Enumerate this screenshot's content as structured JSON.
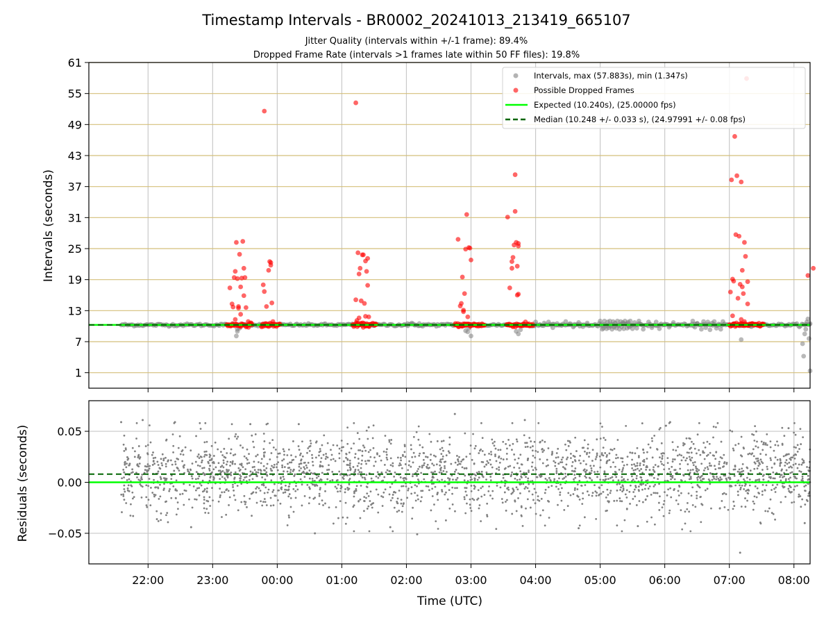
{
  "figure": {
    "title": "Timestamp Intervals - BR0002_20241013_213419_665107",
    "subtitle_1": "Jitter Quality (intervals within +/-1 frame): 89.4%",
    "subtitle_2": "Dropped Frame Rate (intervals >1 frames late within 50 FF files): 19.8%",
    "xlabel": "Time (UTC)"
  },
  "chart_data": [
    {
      "type": "scatter",
      "panel": "top",
      "ylabel": "Intervals (seconds)",
      "xlim": [
        "21:05",
        "08:15"
      ],
      "ylim": [
        -2,
        61
      ],
      "yticks": [
        1,
        7,
        13,
        19,
        25,
        31,
        37,
        43,
        49,
        55,
        61
      ],
      "xticks": [
        "22:00",
        "23:00",
        "00:00",
        "01:00",
        "02:00",
        "03:00",
        "04:00",
        "05:00",
        "06:00",
        "07:00",
        "08:00"
      ],
      "grid": "on",
      "legend_position": "top-right",
      "legend": [
        {
          "label": "Intervals, max (57.883s), min (1.347s)",
          "marker": "circle",
          "color": "#808080"
        },
        {
          "label": "Possible Dropped Frames",
          "marker": "circle",
          "color": "#ff0000"
        },
        {
          "label": "Expected (10.240s), (25.00000 fps)",
          "line": "solid",
          "color": "#00ff00"
        },
        {
          "label": "Median (10.248 +/- 0.033 s), (24.97991 +/- 0.08 fps)",
          "line": "dashed",
          "color": "#006400"
        }
      ],
      "expected_value": 10.24,
      "median_value": 10.248,
      "baseline_band": {
        "time_start": "21:35",
        "time_end": "08:15",
        "value": 10.24
      },
      "series": [
        {
          "name": "Possible Dropped Frames",
          "color": "#ff0000",
          "points": [
            [
              "23:16",
              17.4
            ],
            [
              "23:18",
              14.3
            ],
            [
              "23:19",
              13.7
            ],
            [
              "23:20",
              19.4
            ],
            [
              "23:21",
              20.6
            ],
            [
              "23:22",
              26.2
            ],
            [
              "23:23",
              19.2
            ],
            [
              "23:24",
              13.5
            ],
            [
              "23:25",
              23.9
            ],
            [
              "23:26",
              17.6
            ],
            [
              "23:27",
              19.3
            ],
            [
              "23:28",
              26.4
            ],
            [
              "23:29",
              21.2
            ],
            [
              "23:30",
              19.4
            ],
            [
              "23:31",
              13.6
            ],
            [
              "23:29",
              15.9
            ],
            [
              "23:24",
              13.8
            ],
            [
              "23:26",
              12.3
            ],
            [
              "23:21",
              11.3
            ],
            [
              "23:33",
              10.9
            ],
            [
              "23:48",
              51.6
            ],
            [
              "23:47",
              18.0
            ],
            [
              "23:48",
              16.7
            ],
            [
              "23:50",
              13.8
            ],
            [
              "23:52",
              20.8
            ],
            [
              "23:53",
              22.5
            ],
            [
              "23:54",
              21.8
            ],
            [
              "23:55",
              14.5
            ],
            [
              "23:54",
              22.3
            ],
            [
              "23:56",
              10.9
            ],
            [
              "01:13",
              53.2
            ],
            [
              "01:13",
              15.1
            ],
            [
              "01:15",
              24.2
            ],
            [
              "01:16",
              20.1
            ],
            [
              "01:17",
              21.2
            ],
            [
              "01:18",
              14.9
            ],
            [
              "01:19",
              23.8
            ],
            [
              "01:20",
              23.8
            ],
            [
              "01:21",
              14.4
            ],
            [
              "01:22",
              22.6
            ],
            [
              "01:23",
              20.6
            ],
            [
              "01:24",
              17.9
            ],
            [
              "01:24",
              23.1
            ],
            [
              "01:22",
              11.9
            ],
            [
              "01:14",
              11.1
            ],
            [
              "01:25",
              11.8
            ],
            [
              "01:16",
              11.6
            ],
            [
              "02:48",
              26.8
            ],
            [
              "02:50",
              13.9
            ],
            [
              "02:51",
              14.4
            ],
            [
              "02:52",
              19.5
            ],
            [
              "02:53",
              13.1
            ],
            [
              "02:54",
              16.3
            ],
            [
              "02:55",
              24.9
            ],
            [
              "02:56",
              31.6
            ],
            [
              "02:57",
              11.8
            ],
            [
              "02:58",
              25.2
            ],
            [
              "02:59",
              25.1
            ],
            [
              "03:00",
              22.8
            ],
            [
              "02:53",
              12.8
            ],
            [
              "03:34",
              31.1
            ],
            [
              "03:36",
              17.4
            ],
            [
              "03:38",
              21.2
            ],
            [
              "03:39",
              23.3
            ],
            [
              "03:40",
              25.7
            ],
            [
              "03:41",
              39.3
            ],
            [
              "03:41",
              32.2
            ],
            [
              "03:42",
              26.2
            ],
            [
              "03:43",
              21.6
            ],
            [
              "03:44",
              26.0
            ],
            [
              "03:44",
              25.5
            ],
            [
              "03:43",
              16.0
            ],
            [
              "03:44",
              16.2
            ],
            [
              "03:38",
              22.5
            ],
            [
              "07:01",
              16.6
            ],
            [
              "07:02",
              38.3
            ],
            [
              "07:03",
              19.1
            ],
            [
              "07:04",
              18.7
            ],
            [
              "07:05",
              46.7
            ],
            [
              "07:06",
              27.7
            ],
            [
              "07:07",
              39.1
            ],
            [
              "07:08",
              15.4
            ],
            [
              "07:09",
              27.4
            ],
            [
              "07:10",
              18.1
            ],
            [
              "07:11",
              37.9
            ],
            [
              "07:12",
              17.6
            ],
            [
              "07:12",
              20.8
            ],
            [
              "07:13",
              16.3
            ],
            [
              "07:14",
              26.2
            ],
            [
              "07:15",
              23.5
            ],
            [
              "07:16",
              57.9
            ],
            [
              "07:17",
              18.6
            ],
            [
              "07:17",
              14.3
            ],
            [
              "07:03",
              12.0
            ],
            [
              "07:11",
              11.3
            ],
            [
              "07:14",
              10.9
            ],
            [
              "08:13",
              19.8
            ],
            [
              "08:18",
              21.2
            ]
          ]
        },
        {
          "name": "Intervals, max (57.883s), min (1.347s)",
          "color": "#808080",
          "points": [
            [
              "23:22",
              8.1
            ],
            [
              "23:23",
              9.0
            ],
            [
              "23:25",
              9.6
            ],
            [
              "23:23",
              9.4
            ],
            [
              "01:58",
              10.3
            ],
            [
              "02:01",
              10.5
            ],
            [
              "02:05",
              10.6
            ],
            [
              "02:08",
              10.2
            ],
            [
              "02:12",
              10.5
            ],
            [
              "02:15",
              10.0
            ],
            [
              "02:55",
              9.1
            ],
            [
              "02:57",
              8.9
            ],
            [
              "03:00",
              8.1
            ],
            [
              "02:58",
              9.6
            ],
            [
              "03:44",
              8.5
            ],
            [
              "03:46",
              9.3
            ],
            [
              "03:42",
              9.0
            ],
            [
              "04:00",
              10.8
            ],
            [
              "04:04",
              10.3
            ],
            [
              "04:08",
              10.6
            ],
            [
              "04:12",
              10.8
            ],
            [
              "04:16",
              9.7
            ],
            [
              "04:20",
              10.5
            ],
            [
              "04:24",
              10.2
            ],
            [
              "04:28",
              10.9
            ],
            [
              "04:32",
              10.5
            ],
            [
              "04:36",
              10.1
            ],
            [
              "04:40",
              10.7
            ],
            [
              "04:44",
              9.9
            ],
            [
              "04:48",
              10.6
            ],
            [
              "05:00",
              11.0
            ],
            [
              "05:01",
              10.2
            ],
            [
              "05:02",
              9.4
            ],
            [
              "05:03",
              9.6
            ],
            [
              "05:04",
              11.0
            ],
            [
              "05:05",
              10.0
            ],
            [
              "05:06",
              9.5
            ],
            [
              "05:07",
              10.8
            ],
            [
              "05:08",
              9.7
            ],
            [
              "05:09",
              11.0
            ],
            [
              "05:10",
              10.3
            ],
            [
              "05:11",
              9.4
            ],
            [
              "05:12",
              10.9
            ],
            [
              "05:13",
              9.8
            ],
            [
              "05:14",
              10.6
            ],
            [
              "05:15",
              9.6
            ],
            [
              "05:16",
              11.0
            ],
            [
              "05:17",
              10.1
            ],
            [
              "05:18",
              9.4
            ],
            [
              "05:19",
              10.9
            ],
            [
              "05:20",
              9.9
            ],
            [
              "05:21",
              10.7
            ],
            [
              "05:22",
              9.5
            ],
            [
              "05:23",
              11.0
            ],
            [
              "05:24",
              10.4
            ],
            [
              "05:25",
              9.6
            ],
            [
              "05:26",
              10.8
            ],
            [
              "05:27",
              9.8
            ],
            [
              "05:28",
              11.0
            ],
            [
              "05:29",
              10.2
            ],
            [
              "05:30",
              9.5
            ],
            [
              "05:32",
              10.7
            ],
            [
              "05:34",
              9.6
            ],
            [
              "05:36",
              11.0
            ],
            [
              "05:38",
              10.3
            ],
            [
              "05:40",
              9.4
            ],
            [
              "05:45",
              10.8
            ],
            [
              "05:48",
              9.7
            ],
            [
              "05:52",
              10.8
            ],
            [
              "05:55",
              9.5
            ],
            [
              "06:00",
              10.4
            ],
            [
              "06:04",
              9.8
            ],
            [
              "06:08",
              10.7
            ],
            [
              "06:26",
              11.0
            ],
            [
              "06:28",
              9.8
            ],
            [
              "06:30",
              10.5
            ],
            [
              "06:34",
              9.4
            ],
            [
              "06:36",
              10.9
            ],
            [
              "06:38",
              9.7
            ],
            [
              "06:40",
              10.8
            ],
            [
              "06:42",
              9.3
            ],
            [
              "06:44",
              10.6
            ],
            [
              "06:46",
              10.9
            ],
            [
              "06:48",
              9.6
            ],
            [
              "06:50",
              10.4
            ],
            [
              "06:52",
              9.4
            ],
            [
              "06:54",
              10.9
            ],
            [
              "07:11",
              7.4
            ],
            [
              "08:08",
              6.6
            ],
            [
              "08:09",
              4.2
            ],
            [
              "08:10",
              8.5
            ],
            [
              "08:11",
              9.4
            ],
            [
              "08:12",
              10.8
            ],
            [
              "08:13",
              11.4
            ],
            [
              "08:14",
              7.6
            ],
            [
              "08:15",
              1.35
            ],
            [
              "08:15",
              10.5
            ]
          ]
        }
      ]
    },
    {
      "type": "scatter",
      "panel": "bottom",
      "ylabel": "Residuals (seconds)",
      "xlabel": "Time (UTC)",
      "xlim": [
        "21:05",
        "08:15"
      ],
      "ylim": [
        -0.08,
        0.08
      ],
      "yticks": [
        "−0.05",
        "0.00",
        "0.05"
      ],
      "xticks": [
        "22:00",
        "23:00",
        "00:00",
        "01:00",
        "02:00",
        "03:00",
        "04:00",
        "05:00",
        "06:00",
        "07:00",
        "08:00"
      ],
      "grid": "on",
      "expected_residual": 0.0,
      "median_residual": 0.008,
      "residual_cloud": {
        "time_start": "21:35",
        "time_end": "08:15",
        "mean": 0.008,
        "spread_sd": 0.019,
        "count": 2400
      },
      "series": [
        {
          "name": "Residuals",
          "color": "#808080",
          "outliers": [
            [
              "21:35",
              0.059
            ],
            [
              "21:55",
              0.061
            ],
            [
              "22:25",
              0.059
            ],
            [
              "23:35",
              0.057
            ],
            [
              "00:20",
              0.057
            ],
            [
              "00:35",
              -0.05
            ],
            [
              "01:25",
              0.054
            ],
            [
              "02:10",
              -0.051
            ],
            [
              "02:45",
              0.067
            ],
            [
              "03:50",
              0.061
            ],
            [
              "04:40",
              -0.045
            ],
            [
              "06:05",
              0.059
            ],
            [
              "07:10",
              -0.069
            ],
            [
              "07:55",
              0.053
            ],
            [
              "08:10",
              -0.04
            ],
            [
              "01:45",
              -0.044
            ],
            [
              "22:40",
              -0.044
            ],
            [
              "05:35",
              -0.043
            ]
          ]
        }
      ]
    }
  ]
}
